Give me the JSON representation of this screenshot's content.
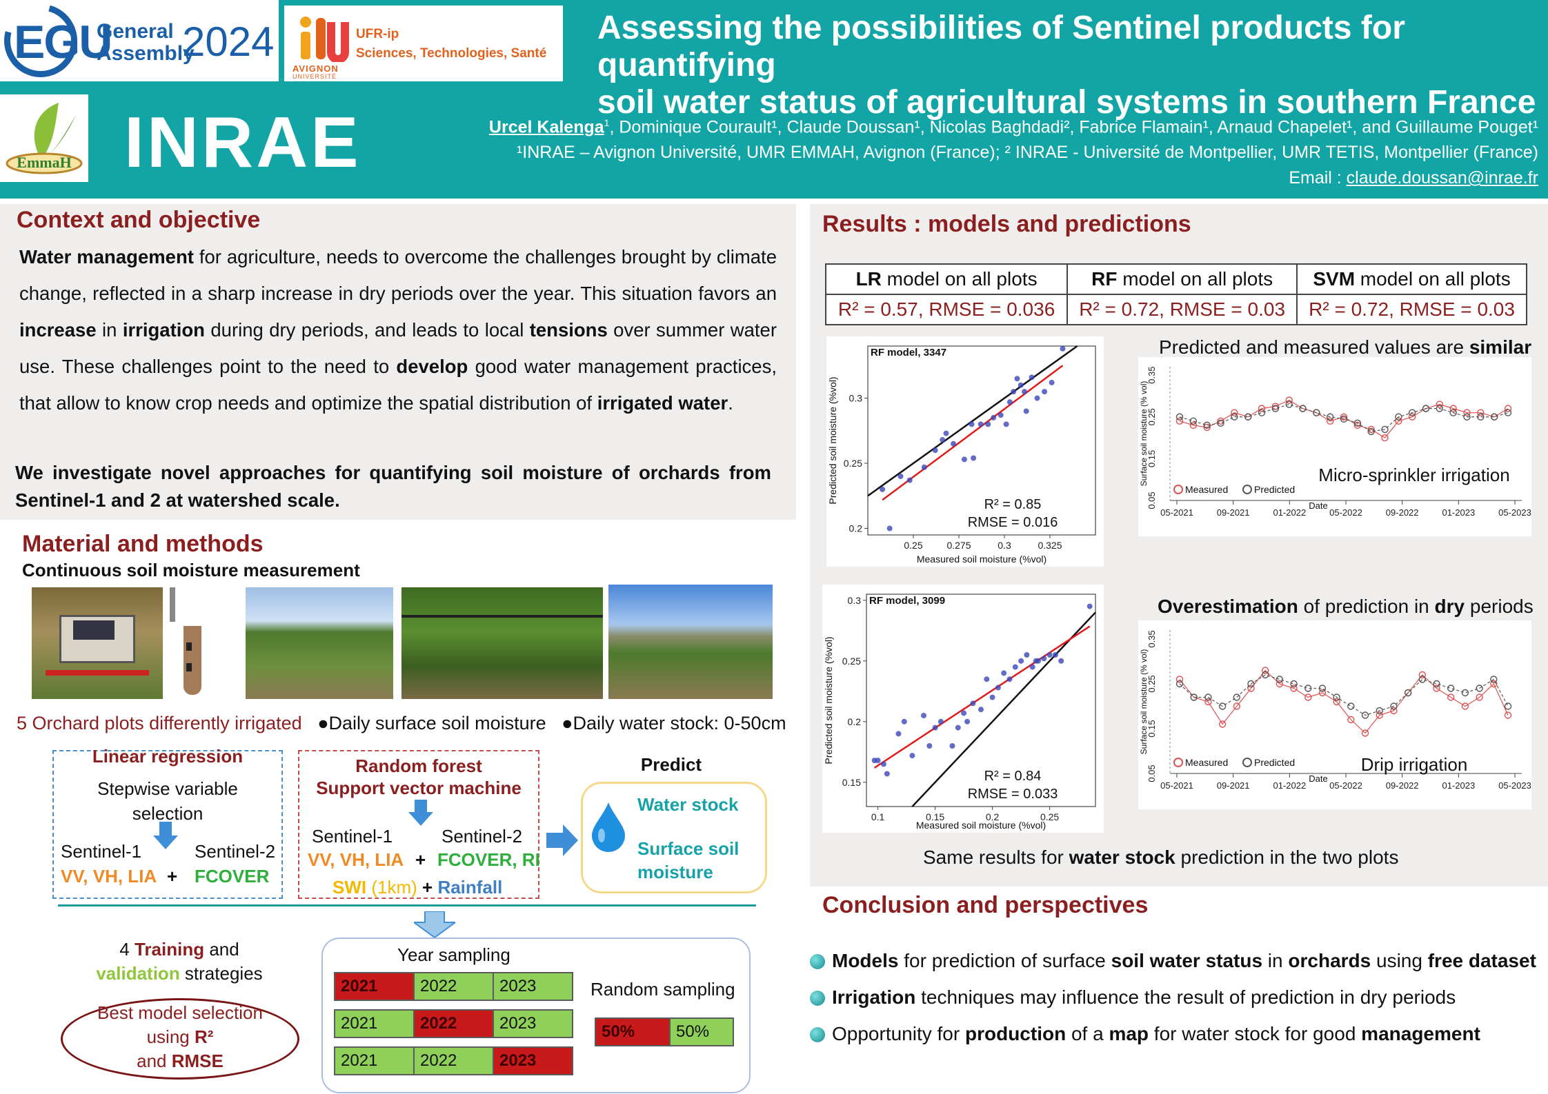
{
  "header": {
    "egu_logo": {
      "mark": "EGU",
      "line1": "General",
      "line2": "Assembly",
      "year": "2024"
    },
    "avignon_logo": {
      "line1": "UFR-ip",
      "line2": "Sciences, Technologies, Santé",
      "univ1": "AVIGNON",
      "univ2": "UNIVERSITÉ"
    },
    "emmah_logo": {
      "text": "EmmaH"
    },
    "inrae_logo": {
      "text": "INRAE"
    },
    "title_line1": "Assessing the possibilities of Sentinel products for quantifying",
    "title_line2": "soil water status of agricultural systems in southern France",
    "authors": {
      "first_author": "Urcel Kalenga",
      "others": ", Dominique Courault¹, Claude Doussan¹,  Nicolas Baghdadi², Fabrice Flamain¹,  Arnaud Chapelet¹, and  Guillaume Pouget¹",
      "first_sup": "1",
      "affiliations": "¹INRAE – Avignon Université, UMR EMMAH, Avignon (France); ² INRAE - Université de Montpellier, UMR TETIS, Montpellier (France)",
      "email_label": "Email : ",
      "email": "claude.doussan@inrae.fr"
    }
  },
  "context": {
    "title": "Context and objective",
    "p1_b1": "Water management",
    "p1_t1": " for agriculture, needs to overcome  the challenges brought by climate change,  reflected in a sharp increase in dry periods over the year. This situation favors an ",
    "p1_b2": "increase",
    "p1_t2": " in ",
    "p1_b3": "irrigation",
    "p1_t3": " during dry periods, and leads to local ",
    "p1_b4": "tensions",
    "p1_t4": " over summer water use. These challenges point to the need to ",
    "p1_b5": "develop",
    "p1_t5": " good water management practices, that allow to know crop needs and optimize the spatial distribution of ",
    "p1_b6": "irrigated water",
    "p1_t6": ".",
    "goal": "We investigate novel approaches for quantifying soil moisture of orchards from Sentinel-1 and 2 at watershed scale."
  },
  "methods": {
    "title": "Material and methods",
    "subtitle": "Continuous soil moisture measurement",
    "orchard_text": "5 Orchard plots differently irrigated",
    "bullet1": "●Daily surface soil moisture",
    "bullet2": "●Daily water stock: 0-50cm",
    "lr_title": "Linear regression",
    "lr_desc": "Stepwise variable selection",
    "s1": "Sentinel-1",
    "s2": "Sentinel-2",
    "lr_s1_vars": "VV, VH, LIA",
    "plus": "+",
    "lr_s2_vars": "FCOVER",
    "rf_title": "Random forest",
    "svm_title": "Support vector machine",
    "rf_s1_vars": "VV, VH, LIA",
    "rf_s2_vars": "FCOVER, RI",
    "swi": "SWI",
    "swi_res": "(1km)",
    "rainfall": "Rainfall",
    "predict_title": "Predict",
    "predict_1": "Water stock",
    "predict_2": "Surface soil moisture",
    "training_pre": "4 ",
    "training_b": "Training",
    "training_mid": " and",
    "validation_b": "validation",
    "training_post": " strategies",
    "best_model_1": "Best model selection using ",
    "best_model_b1": "R²",
    "best_model_2": " and ",
    "best_model_b2": "RMSE",
    "year_sampling": "Year sampling",
    "year_rows": [
      [
        "2021",
        "2022",
        "2023"
      ],
      [
        "2021",
        "2022",
        "2023"
      ],
      [
        "2021",
        "2022",
        "2023"
      ]
    ],
    "random_sampling": "Random sampling",
    "random_cells": [
      "50%",
      "50%"
    ]
  },
  "results": {
    "title": "Results : models and predictions",
    "table_headers": [
      {
        "b": "LR",
        "t": " model on all plots"
      },
      {
        "b": "RF",
        "t": " model on all plots"
      },
      {
        "b": "SVM",
        "t": " model on all plots"
      }
    ],
    "table_metrics": [
      "R² = 0.57, RMSE = 0.036",
      "R² = 0.72, RMSE = 0.03",
      "R² = 0.72, RMSE = 0.03"
    ],
    "note1_t": "Predicted and measured values are ",
    "note1_b": "similar",
    "note2_b1": "Overestimation",
    "note2_t1": " of prediction in ",
    "note2_b2": "dry",
    "note2_t2": " periods",
    "note3_t1": "Same results for ",
    "note3_b": "water stock",
    "note3_t2": " prediction in the two plots",
    "scatter1": {
      "label": "RF model, 3347",
      "r2": "R² = 0.85",
      "rmse": "RMSE = 0.016",
      "xlabel": "Measured soil moisture (%vol)",
      "ylabel": "Predicted soil moisture (%vol)"
    },
    "scatter2": {
      "label": "RF model, 3099",
      "r2": "R² = 0.84",
      "rmse": "RMSE = 0.033",
      "xlabel": "Measured soil moisture (%vol)",
      "ylabel": "Predicted soil moisture (%vol)"
    },
    "ts1": {
      "annotation": "Micro-sprinkler irrigation",
      "legend_measured": "Measured",
      "legend_predicted": "Predicted",
      "xlabel": "Date",
      "ylabel": "Surface soil moisture (% vol)"
    },
    "ts2": {
      "annotation": "Drip irrigation",
      "legend_measured": "Measured",
      "legend_predicted": "Predicted",
      "xlabel": "Date",
      "ylabel": "Surface soil moisture (% vol)"
    }
  },
  "chart_data": [
    {
      "type": "scatter",
      "title": "RF model, 3347",
      "xlabel": "Measured soil moisture (%vol)",
      "ylabel": "Predicted soil moisture (%vol)",
      "xlim": [
        0.225,
        0.35
      ],
      "ylim": [
        0.195,
        0.34
      ],
      "xticks": [
        0.25,
        0.275,
        0.3,
        0.325
      ],
      "yticks": [
        0.2,
        0.25,
        0.3
      ],
      "x": [
        0.233,
        0.237,
        0.243,
        0.248,
        0.256,
        0.262,
        0.266,
        0.268,
        0.272,
        0.278,
        0.282,
        0.283,
        0.287,
        0.291,
        0.294,
        0.298,
        0.301,
        0.303,
        0.305,
        0.307,
        0.309,
        0.311,
        0.312,
        0.315,
        0.318,
        0.322,
        0.326,
        0.332
      ],
      "y": [
        0.23,
        0.2,
        0.24,
        0.237,
        0.247,
        0.26,
        0.268,
        0.273,
        0.265,
        0.253,
        0.28,
        0.254,
        0.28,
        0.28,
        0.285,
        0.287,
        0.28,
        0.297,
        0.305,
        0.315,
        0.31,
        0.305,
        0.29,
        0.316,
        0.3,
        0.305,
        0.312,
        0.338
      ],
      "r2": 0.85,
      "rmse": 0.016
    },
    {
      "type": "scatter",
      "title": "RF model, 3099",
      "xlabel": "Measured soil moisture (%vol)",
      "ylabel": "Predicted soil moisture (%vol)",
      "xlim": [
        0.09,
        0.29
      ],
      "ylim": [
        0.13,
        0.305
      ],
      "xticks": [
        0.1,
        0.15,
        0.2,
        0.25
      ],
      "yticks": [
        0.15,
        0.2,
        0.25,
        0.3
      ],
      "x": [
        0.097,
        0.1,
        0.105,
        0.108,
        0.118,
        0.123,
        0.13,
        0.14,
        0.145,
        0.15,
        0.155,
        0.165,
        0.17,
        0.175,
        0.178,
        0.183,
        0.19,
        0.195,
        0.2,
        0.205,
        0.21,
        0.215,
        0.22,
        0.225,
        0.23,
        0.235,
        0.238,
        0.24,
        0.245,
        0.25,
        0.255,
        0.26,
        0.285
      ],
      "y": [
        0.168,
        0.168,
        0.165,
        0.157,
        0.19,
        0.2,
        0.172,
        0.205,
        0.18,
        0.195,
        0.2,
        0.18,
        0.195,
        0.207,
        0.2,
        0.215,
        0.21,
        0.235,
        0.22,
        0.228,
        0.24,
        0.235,
        0.245,
        0.25,
        0.255,
        0.245,
        0.25,
        0.25,
        0.252,
        0.255,
        0.255,
        0.25,
        0.295
      ],
      "r2": 0.84,
      "rmse": 0.033
    },
    {
      "type": "line",
      "title": "",
      "annotation": "Micro-sprinkler irrigation",
      "xlabel": "Date",
      "ylabel": "Surface soil moisture (% vol)",
      "xticks": [
        "05-2021",
        "09-2021",
        "01-2022",
        "05-2022",
        "09-2022",
        "01-2023",
        "05-2023"
      ],
      "yticks": [
        0.05,
        0.15,
        0.25,
        0.35
      ],
      "ylim": [
        0.05,
        0.37
      ],
      "series": [
        {
          "name": "Measured",
          "values": [
            0.24,
            0.23,
            0.225,
            0.24,
            0.26,
            0.25,
            0.27,
            0.275,
            0.29,
            0.27,
            0.26,
            0.24,
            0.25,
            0.23,
            0.22,
            0.2,
            0.24,
            0.25,
            0.27,
            0.28,
            0.27,
            0.26,
            0.26,
            0.25,
            0.27
          ]
        },
        {
          "name": "Predicted",
          "values": [
            0.25,
            0.24,
            0.23,
            0.235,
            0.25,
            0.25,
            0.26,
            0.27,
            0.28,
            0.27,
            0.26,
            0.25,
            0.245,
            0.235,
            0.215,
            0.22,
            0.25,
            0.26,
            0.27,
            0.27,
            0.26,
            0.25,
            0.25,
            0.25,
            0.26
          ]
        }
      ]
    },
    {
      "type": "line",
      "title": "",
      "annotation": "Drip irrigation",
      "xlabel": "Date",
      "ylabel": "Surface soil moisture (% vol)",
      "xticks": [
        "05-2021",
        "09-2021",
        "01-2022",
        "05-2022",
        "09-2022",
        "01-2023",
        "05-2023"
      ],
      "yticks": [
        0.05,
        0.15,
        0.25,
        0.35
      ],
      "ylim": [
        0.05,
        0.37
      ],
      "series": [
        {
          "name": "Measured",
          "values": [
            0.26,
            0.22,
            0.21,
            0.16,
            0.2,
            0.24,
            0.28,
            0.25,
            0.24,
            0.22,
            0.23,
            0.21,
            0.17,
            0.14,
            0.18,
            0.19,
            0.23,
            0.27,
            0.24,
            0.22,
            0.2,
            0.22,
            0.25,
            0.18
          ]
        },
        {
          "name": "Predicted",
          "values": [
            0.25,
            0.22,
            0.22,
            0.2,
            0.22,
            0.25,
            0.27,
            0.26,
            0.25,
            0.24,
            0.24,
            0.22,
            0.2,
            0.18,
            0.19,
            0.2,
            0.23,
            0.26,
            0.25,
            0.24,
            0.23,
            0.24,
            0.26,
            0.2
          ]
        }
      ]
    }
  ],
  "conclusion": {
    "title": "Conclusion and perspectives",
    "items": [
      {
        "b1": "Models",
        "t1": " for prediction of surface ",
        "b2": "soil water status",
        "t2": " in ",
        "b3": "orchards",
        "t3": " using ",
        "b4": "free dataset",
        "t4": ""
      },
      {
        "b1": "Irrigation",
        "t1": " techniques may influence the result of prediction in dry periods",
        "b2": "",
        "t2": "",
        "b3": "",
        "t3": "",
        "b4": "",
        "t4": ""
      },
      {
        "b1": "",
        "t1": "Opportunity for ",
        "b2": "production",
        "t2": " of a ",
        "b3": "map",
        "t3": " for water stock  for good  ",
        "b4": "management",
        "t4": ""
      }
    ]
  },
  "colors": {
    "header_bg": "#13a5a5",
    "section_title": "#8b1f1f",
    "panel_bg": "#efeeed",
    "measured": "#e05050",
    "predicted": "#555555",
    "fit_line": "#e01a1a"
  },
  "icons": {
    "bullet": "teal-sphere-bullet",
    "water": "water-drop-icon",
    "arrow": "down-arrow-icon"
  }
}
